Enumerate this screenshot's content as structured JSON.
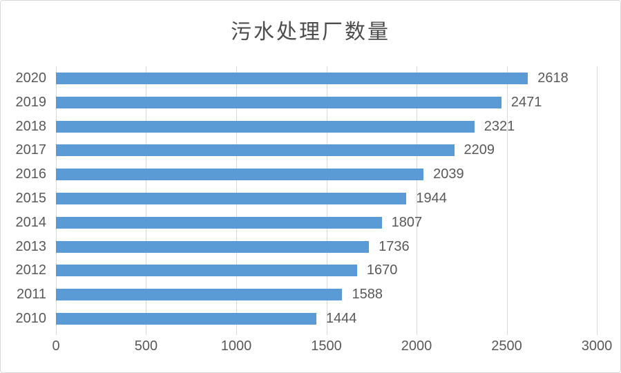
{
  "chart_data": {
    "type": "bar",
    "orientation": "horizontal",
    "title": "污水处理厂数量",
    "categories": [
      "2020",
      "2019",
      "2018",
      "2017",
      "2016",
      "2015",
      "2014",
      "2013",
      "2012",
      "2011",
      "2010"
    ],
    "values": [
      2618,
      2471,
      2321,
      2209,
      2039,
      1944,
      1807,
      1736,
      1670,
      1588,
      1444
    ],
    "data_labels": [
      "2618",
      "2471",
      "2321",
      "2209",
      "2039",
      "1944",
      "1807",
      "1736",
      "1670",
      "1588",
      "1444"
    ],
    "x_ticks": [
      0,
      500,
      1000,
      1500,
      2000,
      2500,
      3000
    ],
    "x_tick_labels": [
      "0",
      "500",
      "1000",
      "1500",
      "2000",
      "2500",
      "3000"
    ],
    "xlim": [
      0,
      3000
    ],
    "grid": true,
    "legend": "none",
    "bar_color": "#5B9BD5",
    "gridline_color": "#D9D9D9",
    "text_color": "#595959",
    "title_color": "#4D4D4D"
  }
}
